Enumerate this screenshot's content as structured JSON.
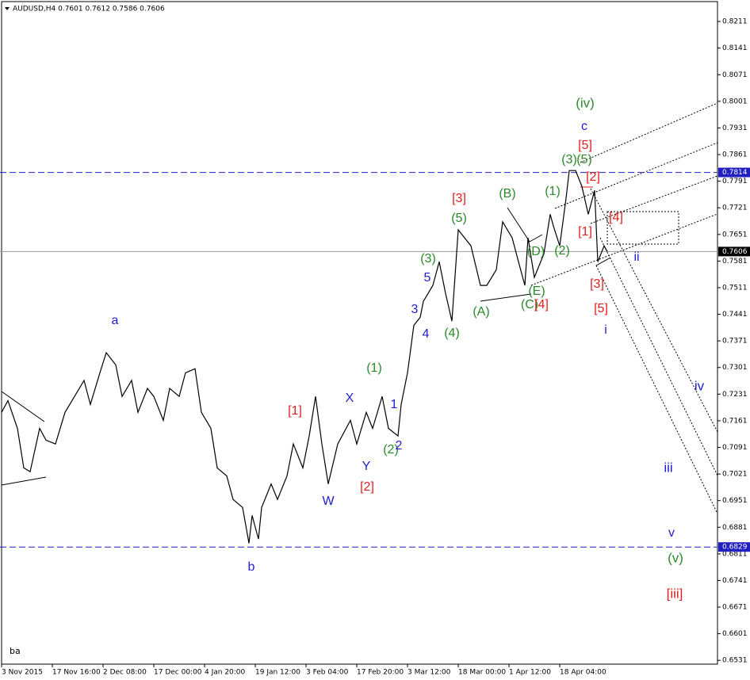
{
  "chart_data": {
    "type": "line",
    "title": "AUDUSD,H4  0.7601 0.7612 0.7586 0.7606",
    "footer_label": "ba",
    "xlim": [
      -0.5,
      225.75
    ],
    "xticks": [
      {
        "value": 0,
        "label": "3 Nov 2015"
      },
      {
        "value": 16,
        "label": "17 Nov 16:00"
      },
      {
        "value": 32,
        "label": "2 Dec 08:00"
      },
      {
        "value": 48,
        "label": "17 Dec 00:00"
      },
      {
        "value": 64,
        "label": "4 Jan 20:00"
      },
      {
        "value": 80,
        "label": "19 Jan 12:00"
      },
      {
        "value": 96,
        "label": "3 Feb 04:00"
      },
      {
        "value": 112,
        "label": "17 Feb 20:00"
      },
      {
        "value": 128,
        "label": "3 Mar 12:00"
      },
      {
        "value": 144,
        "label": "18 Mar 00:00"
      },
      {
        "value": 160,
        "label": "1 Apr 12:00"
      },
      {
        "value": 176,
        "label": "18 Apr 04:00"
      }
    ],
    "ylim": [
      0.6521,
      0.8257
    ],
    "yticks": [
      0.8211,
      0.8141,
      0.8071,
      0.8001,
      0.7931,
      0.7861,
      0.7791,
      0.7721,
      0.7651,
      0.7581,
      0.7511,
      0.7441,
      0.7371,
      0.7301,
      0.7231,
      0.7161,
      0.7091,
      0.7021,
      0.6951,
      0.6881,
      0.6811,
      0.6741,
      0.6671,
      0.6601,
      0.6531
    ],
    "levels": [
      {
        "value": 0.7814,
        "color": "#2020c0",
        "style": "dashed"
      },
      {
        "value": 0.6829,
        "color": "#2020c0",
        "style": "dashed"
      },
      {
        "value": 0.7606,
        "color": "#000000",
        "style": "solid"
      }
    ],
    "series": [
      {
        "name": "AUDUSD",
        "color": "#000000",
        "x": [
          0,
          2,
          5,
          7,
          9,
          12,
          14,
          17,
          20,
          23,
          26,
          28,
          31,
          33,
          36,
          38,
          41,
          43,
          46,
          48,
          51,
          53,
          56,
          58,
          61,
          63,
          66,
          68,
          71,
          73,
          76,
          78,
          79,
          81,
          82,
          85,
          87,
          90,
          92,
          95,
          97,
          99,
          101,
          103,
          106,
          110,
          112,
          115,
          117,
          120,
          122,
          125,
          126,
          128,
          130,
          132,
          133,
          136,
          138,
          140,
          142,
          144,
          146,
          148,
          151,
          153,
          156,
          158,
          161,
          163,
          165,
          166,
          168,
          171,
          173,
          174,
          176,
          178,
          179,
          181,
          183,
          185,
          187,
          188,
          190,
          191
        ],
        "values": [
          0.7183,
          0.7214,
          0.7141,
          0.7037,
          0.7027,
          0.7141,
          0.711,
          0.71,
          0.7183,
          0.7225,
          0.7267,
          0.7204,
          0.7287,
          0.734,
          0.7308,
          0.7225,
          0.7267,
          0.7183,
          0.7246,
          0.7225,
          0.7162,
          0.7246,
          0.7225,
          0.7287,
          0.7298,
          0.7183,
          0.7141,
          0.7037,
          0.7016,
          0.6954,
          0.6933,
          0.6839,
          0.6912,
          0.685,
          0.6933,
          0.6995,
          0.6954,
          0.7016,
          0.71,
          0.7037,
          0.7121,
          0.7225,
          0.71,
          0.6995,
          0.71,
          0.7162,
          0.71,
          0.7183,
          0.7141,
          0.7225,
          0.7141,
          0.7121,
          0.7204,
          0.7287,
          0.7412,
          0.7433,
          0.7475,
          0.7517,
          0.7579,
          0.7496,
          0.7423,
          0.7663,
          0.7642,
          0.7621,
          0.7517,
          0.7517,
          0.7558,
          0.7684,
          0.7642,
          0.7579,
          0.7517,
          0.7642,
          0.7538,
          0.76,
          0.7704,
          0.7673,
          0.7621,
          0.7746,
          0.7819,
          0.7819,
          0.7777,
          0.7704,
          0.7767,
          0.7579,
          0.7621,
          0.7606
        ]
      }
    ],
    "annotations": [
      {
        "text": "a",
        "color": "#2020d0"
      },
      {
        "text": "b",
        "color": "#2020d0"
      },
      {
        "text": "W",
        "color": "#2020d0"
      },
      {
        "text": "X",
        "color": "#2020d0"
      },
      {
        "text": "Y",
        "color": "#2020d0"
      },
      {
        "text": "[1]",
        "color": "#e02020"
      },
      {
        "text": "[2]",
        "color": "#e02020"
      },
      {
        "text": "(1)",
        "color": "#2a8a2a"
      },
      {
        "text": "1",
        "color": "#2020d0"
      },
      {
        "text": "(2)",
        "color": "#2a8a2a"
      },
      {
        "text": "2",
        "color": "#2020d0"
      },
      {
        "text": "3",
        "color": "#2020d0"
      },
      {
        "text": "4",
        "color": "#2020d0"
      },
      {
        "text": "5",
        "color": "#2020d0"
      },
      {
        "text": "(3)",
        "color": "#2a8a2a"
      },
      {
        "text": "(4)",
        "color": "#2a8a2a"
      },
      {
        "text": "(5)",
        "color": "#2a8a2a"
      },
      {
        "text": "[3]",
        "color": "#e02020"
      },
      {
        "text": "(A)",
        "color": "#2a8a2a"
      },
      {
        "text": "(B)",
        "color": "#2a8a2a"
      },
      {
        "text": "(C)",
        "color": "#2a8a2a"
      },
      {
        "text": "(D)",
        "color": "#2a8a2a"
      },
      {
        "text": "(E)",
        "color": "#2a8a2a"
      },
      {
        "text": "[4]",
        "color": "#e02020"
      },
      {
        "text": "(1)",
        "color": "#2a8a2a"
      },
      {
        "text": "(2)",
        "color": "#2a8a2a"
      },
      {
        "text": "(3)",
        "color": "#2a8a2a"
      },
      {
        "text": "(5)",
        "color": "#2a8a2a"
      },
      {
        "text": "[5]",
        "color": "#e02020"
      },
      {
        "text": "c",
        "color": "#2020d0"
      },
      {
        "text": "(iv)",
        "color": "#2a8a2a"
      },
      {
        "text": "[2]",
        "color": "#e02020"
      },
      {
        "text": "[4]",
        "color": "#e02020"
      },
      {
        "text": "[1]",
        "color": "#e02020"
      },
      {
        "text": "[3]",
        "color": "#e02020"
      },
      {
        "text": "[5]",
        "color": "#e02020"
      },
      {
        "text": "i",
        "color": "#2020d0"
      },
      {
        "text": "ii",
        "color": "#2020d0"
      },
      {
        "text": "iii",
        "color": "#2020d0"
      },
      {
        "text": "iv",
        "color": "#2020d0"
      },
      {
        "text": "v",
        "color": "#2020d0"
      },
      {
        "text": "(v)",
        "color": "#2a8a2a"
      },
      {
        "text": "[iii]",
        "color": "#e02020"
      }
    ]
  }
}
